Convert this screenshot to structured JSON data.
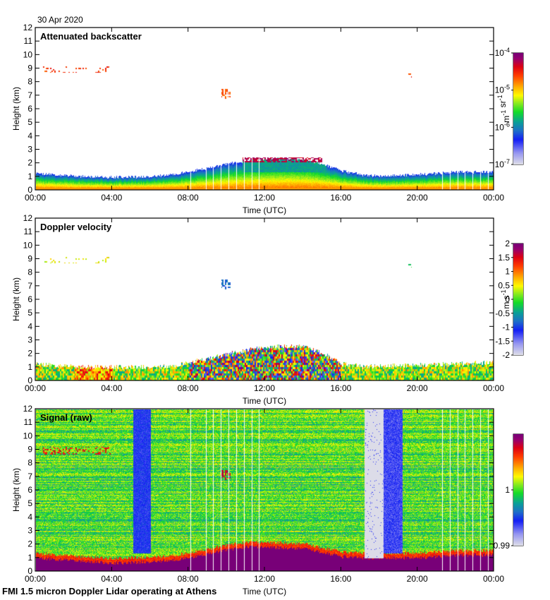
{
  "date": "30 Apr 2020",
  "footer": "FMI 1.5 micron Doppler Lidar operating at Athens",
  "chart_data": [
    {
      "type": "heatmap",
      "title": "Attenuated backscatter",
      "xlabel": "Time (UTC)",
      "ylabel": "Height (km)",
      "x_ticks": [
        "00:00",
        "04:00",
        "08:00",
        "12:00",
        "16:00",
        "20:00",
        "00:00"
      ],
      "x_range_hours": [
        0,
        24
      ],
      "y_ticks": [
        "0",
        "1",
        "2",
        "3",
        "4",
        "5",
        "6",
        "7",
        "8",
        "9",
        "10",
        "11",
        "12"
      ],
      "ylim": [
        0,
        12
      ],
      "colorbar": {
        "scale": "log",
        "range": [
          1e-07,
          0.0001
        ],
        "tick_labels": [
          "10-7",
          "10-6",
          "10-5",
          "10-4"
        ],
        "tick_positions": [
          0,
          0.3333,
          0.6667,
          1
        ],
        "unit_label": "m-1 sr-1"
      },
      "features": {
        "boundary_layer_top_km": [
          [
            0,
            1.2
          ],
          [
            2,
            1.0
          ],
          [
            4,
            0.9
          ],
          [
            6,
            0.95
          ],
          [
            7,
            1.1
          ],
          [
            8,
            1.3
          ],
          [
            9,
            1.6
          ],
          [
            10,
            1.9
          ],
          [
            11,
            2.1
          ],
          [
            12,
            2.2
          ],
          [
            13,
            2.3
          ],
          [
            14,
            2.2
          ],
          [
            15,
            1.9
          ],
          [
            16,
            1.4
          ],
          [
            17,
            1.1
          ],
          [
            18,
            1.0
          ],
          [
            20,
            1.1
          ],
          [
            22,
            1.3
          ],
          [
            24,
            1.3
          ]
        ],
        "cloud_layers": [
          {
            "t_start": 0.3,
            "t_end": 3.9,
            "z_km": 8.9,
            "thick_km": 0.5,
            "level": 0.82,
            "density": 0.12
          },
          {
            "t_start": 9.7,
            "t_end": 10.2,
            "z_km": 7.1,
            "thick_km": 0.7,
            "level": 0.78,
            "density": 0.35
          },
          {
            "t_start": 10.8,
            "t_end": 15.0,
            "z_km": 2.2,
            "thick_km": 0.35,
            "level": 0.92,
            "density": 0.7
          },
          {
            "t_start": 19.5,
            "t_end": 19.7,
            "z_km": 8.6,
            "thick_km": 0.6,
            "level": 0.8,
            "density": 0.2
          }
        ],
        "missing_profiles_hours": [
          8.1,
          8.9,
          9.3,
          9.7,
          10.1,
          10.5,
          10.9,
          11.3,
          11.7,
          21.3,
          21.7,
          22.1,
          22.5,
          22.9,
          23.3,
          23.7
        ]
      }
    },
    {
      "type": "heatmap",
      "title": "Doppler velocity",
      "xlabel": "Time (UTC)",
      "ylabel": "Height (km)",
      "x_ticks": [
        "00:00",
        "04:00",
        "08:00",
        "12:00",
        "16:00",
        "20:00",
        "00:00"
      ],
      "x_range_hours": [
        0,
        24
      ],
      "y_ticks": [
        "0",
        "1",
        "2",
        "3",
        "4",
        "5",
        "6",
        "7",
        "8",
        "9",
        "10",
        "11",
        "12"
      ],
      "ylim": [
        0,
        12
      ],
      "colorbar": {
        "scale": "linear",
        "range": [
          -2,
          2
        ],
        "tick_labels": [
          "-2",
          "-1.5",
          "-1",
          "-0.5",
          "0",
          "0.5",
          "1",
          "1.5",
          "2"
        ],
        "tick_positions": [
          0,
          0.125,
          0.25,
          0.375,
          0.5,
          0.625,
          0.75,
          0.875,
          1
        ],
        "unit_label": "m s-1"
      },
      "features": {
        "boundary_layer_top_km": [
          [
            0,
            1.2
          ],
          [
            2,
            1.0
          ],
          [
            4,
            0.95
          ],
          [
            6,
            0.95
          ],
          [
            7,
            1.0
          ],
          [
            8,
            1.3
          ],
          [
            9,
            1.6
          ],
          [
            10,
            1.9
          ],
          [
            11,
            2.2
          ],
          [
            12,
            2.4
          ],
          [
            13,
            2.5
          ],
          [
            14,
            2.5
          ],
          [
            15,
            2.0
          ],
          [
            16,
            1.2
          ],
          [
            17,
            1.0
          ],
          [
            20,
            1.1
          ],
          [
            24,
            1.3
          ]
        ],
        "cloud_layers": [
          {
            "t_start": 0.3,
            "t_end": 3.9,
            "z_km": 8.9,
            "thick_km": 0.5,
            "level": 0.62,
            "density": 0.1
          },
          {
            "t_start": 9.7,
            "t_end": 10.2,
            "z_km": 7.1,
            "thick_km": 0.7,
            "level": 0.3,
            "density": 0.35
          },
          {
            "t_start": 19.5,
            "t_end": 19.7,
            "z_km": 8.6,
            "thick_km": 0.5,
            "level": 0.45,
            "density": 0.2
          }
        ]
      }
    },
    {
      "type": "heatmap",
      "title": "Signal (raw)",
      "xlabel": "Time (UTC)",
      "ylabel": "Height (km)",
      "x_ticks": [
        "00:00",
        "04:00",
        "08:00",
        "12:00",
        "16:00",
        "20:00",
        "00:00"
      ],
      "x_range_hours": [
        0,
        24
      ],
      "y_ticks": [
        "0",
        "1",
        "2",
        "3",
        "4",
        "5",
        "6",
        "7",
        "8",
        "9",
        "10",
        "11",
        "12"
      ],
      "ylim": [
        0,
        12
      ],
      "colorbar": {
        "scale": "linear",
        "range": [
          0.99,
          1.01
        ],
        "tick_labels": [
          "0.99",
          "1"
        ],
        "tick_positions": [
          0,
          0.5
        ],
        "unit_label": ""
      },
      "features": {
        "boundary_layer_top_km": [
          [
            0,
            1.3
          ],
          [
            2,
            1.1
          ],
          [
            4,
            0.9
          ],
          [
            6,
            1.0
          ],
          [
            7,
            1.1
          ],
          [
            8,
            1.3
          ],
          [
            9,
            1.6
          ],
          [
            10,
            1.9
          ],
          [
            11,
            2.1
          ],
          [
            12,
            2.1
          ],
          [
            14,
            2.0
          ],
          [
            15,
            1.7
          ],
          [
            16,
            1.4
          ],
          [
            17,
            1.3
          ],
          [
            20,
            1.3
          ],
          [
            22,
            1.5
          ],
          [
            24,
            1.5
          ]
        ],
        "low_signal_blocks": [
          {
            "t_start": 5.1,
            "t_end": 6.0,
            "level": 0.22
          },
          {
            "t_start": 17.2,
            "t_end": 18.2,
            "level": 0.0
          },
          {
            "t_start": 18.2,
            "t_end": 19.2,
            "level": 0.18
          }
        ],
        "cloud_layers": [
          {
            "t_start": 0.3,
            "t_end": 3.9,
            "z_km": 8.9,
            "thick_km": 0.6,
            "level": 0.85,
            "density": 0.25
          },
          {
            "t_start": 9.7,
            "t_end": 10.2,
            "z_km": 7.1,
            "thick_km": 0.7,
            "level": 0.9,
            "density": 0.35
          }
        ],
        "missing_profiles_hours": [
          8.1,
          8.9,
          9.3,
          9.7,
          10.1,
          10.5,
          10.9,
          11.3,
          11.7,
          21.3,
          21.7,
          22.1,
          22.5,
          22.9,
          23.3,
          23.7
        ]
      }
    }
  ]
}
